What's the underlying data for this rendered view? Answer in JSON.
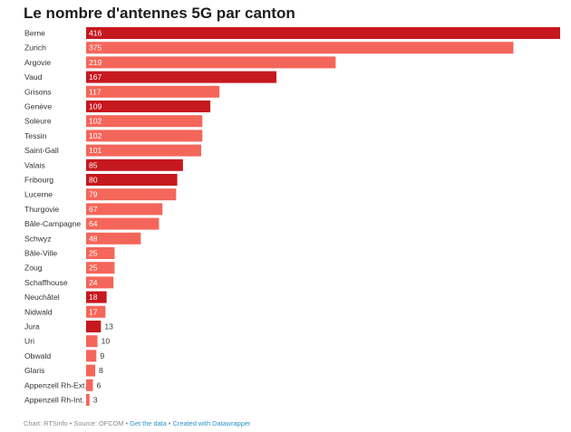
{
  "title": "Le nombre d'antennes 5G par canton",
  "footer": {
    "credit": "Chart: RTSinfo • Source: OFCOM •",
    "get_data": "Get the data",
    "sep": "•",
    "created_with": "Created with Datawrapper"
  },
  "chart_data": {
    "type": "bar",
    "orientation": "horizontal",
    "title": "Le nombre d'antennes 5G par canton",
    "xlim": [
      0,
      416
    ],
    "colors": {
      "dark": "#c6181f",
      "light": "#f5665a"
    },
    "categories": [
      "Berne",
      "Zurich",
      "Argovie",
      "Vaud",
      "Grisons",
      "Genève",
      "Soleure",
      "Tessin",
      "Saint-Gall",
      "Valais",
      "Fribourg",
      "Lucerne",
      "Thurgovie",
      "Bâle-Campagne",
      "Schwyz",
      "Bâle-Ville",
      "Zoug",
      "Schaffhouse",
      "Neuchâtel",
      "Nidwald",
      "Jura",
      "Uri",
      "Obwald",
      "Glaris",
      "Appenzell Rh-Ext.",
      "Appenzell Rh-Int."
    ],
    "values": [
      416,
      375,
      219,
      167,
      117,
      109,
      102,
      102,
      101,
      85,
      80,
      79,
      67,
      64,
      48,
      25,
      25,
      24,
      18,
      17,
      13,
      10,
      9,
      8,
      6,
      3
    ],
    "highlight": [
      "dark",
      "light",
      "light",
      "dark",
      "light",
      "dark",
      "light",
      "light",
      "light",
      "dark",
      "dark",
      "light",
      "light",
      "light",
      "light",
      "light",
      "light",
      "light",
      "dark",
      "light",
      "dark",
      "light",
      "light",
      "light",
      "light",
      "light"
    ]
  }
}
